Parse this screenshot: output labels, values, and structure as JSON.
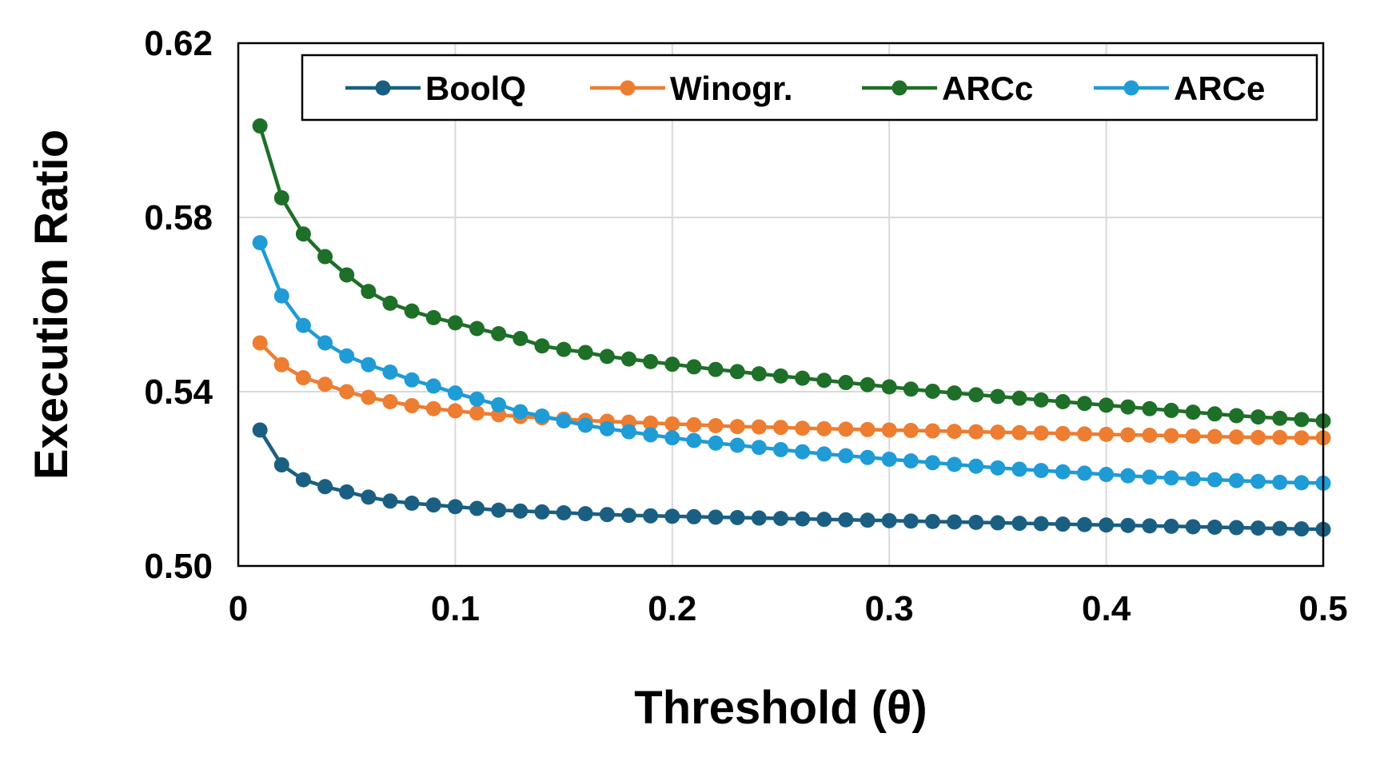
{
  "chart_data": {
    "type": "line",
    "title": "",
    "xlabel": "Threshold (θ)",
    "ylabel": "Execution Ratio",
    "xlim": [
      0,
      0.5
    ],
    "ylim": [
      0.5,
      0.62
    ],
    "x_ticks": [
      0,
      0.1,
      0.2,
      0.3,
      0.4,
      0.5
    ],
    "x_tick_labels": [
      "0",
      "0.1",
      "0.2",
      "0.3",
      "0.4",
      "0.5"
    ],
    "y_ticks": [
      0.5,
      0.54,
      0.58,
      0.62
    ],
    "y_tick_labels": [
      "0.50",
      "0.54",
      "0.58",
      "0.62"
    ],
    "grid": true,
    "legend_position": "top",
    "x": [
      0.01,
      0.02,
      0.03,
      0.04,
      0.05,
      0.06,
      0.07,
      0.08,
      0.09,
      0.1,
      0.11,
      0.12,
      0.13,
      0.14,
      0.15,
      0.16,
      0.17,
      0.18,
      0.19,
      0.2,
      0.21,
      0.22,
      0.23,
      0.24,
      0.25,
      0.26,
      0.27,
      0.28,
      0.29,
      0.3,
      0.31,
      0.32,
      0.33,
      0.34,
      0.35,
      0.36,
      0.37,
      0.38,
      0.39,
      0.4,
      0.41,
      0.42,
      0.43,
      0.44,
      0.45,
      0.46,
      0.47,
      0.48,
      0.49,
      0.5
    ],
    "series": [
      {
        "name": "BoolQ",
        "color": "#1a5f82",
        "values": [
          0.5312,
          0.5232,
          0.5198,
          0.5182,
          0.517,
          0.5158,
          0.5149,
          0.5144,
          0.514,
          0.5136,
          0.5132,
          0.5128,
          0.5126,
          0.5124,
          0.5122,
          0.512,
          0.5118,
          0.5116,
          0.5115,
          0.5114,
          0.5113,
          0.5112,
          0.5111,
          0.511,
          0.5109,
          0.5108,
          0.5107,
          0.5106,
          0.5105,
          0.5104,
          0.5103,
          0.5102,
          0.5101,
          0.51,
          0.5099,
          0.5098,
          0.5097,
          0.5096,
          0.5095,
          0.5094,
          0.5093,
          0.5092,
          0.5091,
          0.509,
          0.5089,
          0.5088,
          0.5087,
          0.5086,
          0.5085,
          0.5084
        ]
      },
      {
        "name": "Winogr.",
        "color": "#ed7d31",
        "values": [
          0.5512,
          0.5462,
          0.5432,
          0.5417,
          0.54,
          0.5387,
          0.5377,
          0.5368,
          0.5361,
          0.5356,
          0.5351,
          0.5347,
          0.5343,
          0.534,
          0.5337,
          0.5334,
          0.5332,
          0.533,
          0.5328,
          0.5326,
          0.5324,
          0.5322,
          0.532,
          0.5319,
          0.5318,
          0.5316,
          0.5315,
          0.5314,
          0.5313,
          0.5312,
          0.5311,
          0.531,
          0.5309,
          0.5308,
          0.5307,
          0.5306,
          0.5305,
          0.5304,
          0.5303,
          0.5302,
          0.5301,
          0.53,
          0.5299,
          0.5298,
          0.5297,
          0.5296,
          0.5295,
          0.5295,
          0.5294,
          0.5294
        ]
      },
      {
        "name": "ARCc",
        "color": "#1e6f28",
        "values": [
          0.601,
          0.5845,
          0.5762,
          0.571,
          0.5668,
          0.563,
          0.5603,
          0.5585,
          0.557,
          0.5558,
          0.5545,
          0.5533,
          0.5522,
          0.5505,
          0.5497,
          0.549,
          0.5481,
          0.5475,
          0.5469,
          0.5463,
          0.5457,
          0.5451,
          0.5446,
          0.5441,
          0.5436,
          0.5431,
          0.5426,
          0.5421,
          0.5416,
          0.5411,
          0.5406,
          0.5401,
          0.5397,
          0.5393,
          0.5389,
          0.5385,
          0.5381,
          0.5377,
          0.5373,
          0.5369,
          0.5365,
          0.5361,
          0.5357,
          0.5353,
          0.5349,
          0.5345,
          0.5342,
          0.5339,
          0.5336,
          0.5333
        ]
      },
      {
        "name": "ARCe",
        "color": "#1f9bd6",
        "values": [
          0.5742,
          0.562,
          0.5552,
          0.5512,
          0.5482,
          0.5462,
          0.5445,
          0.5427,
          0.5413,
          0.5397,
          0.5383,
          0.537,
          0.5354,
          0.5344,
          0.5333,
          0.5323,
          0.5315,
          0.5308,
          0.5301,
          0.5294,
          0.5288,
          0.5282,
          0.5277,
          0.5272,
          0.5267,
          0.5262,
          0.5257,
          0.5253,
          0.5249,
          0.5245,
          0.5241,
          0.5237,
          0.5233,
          0.5229,
          0.5225,
          0.5222,
          0.5219,
          0.5216,
          0.5213,
          0.521,
          0.5207,
          0.5204,
          0.5202,
          0.52,
          0.5198,
          0.5196,
          0.5194,
          0.5192,
          0.5191,
          0.519
        ]
      }
    ]
  }
}
